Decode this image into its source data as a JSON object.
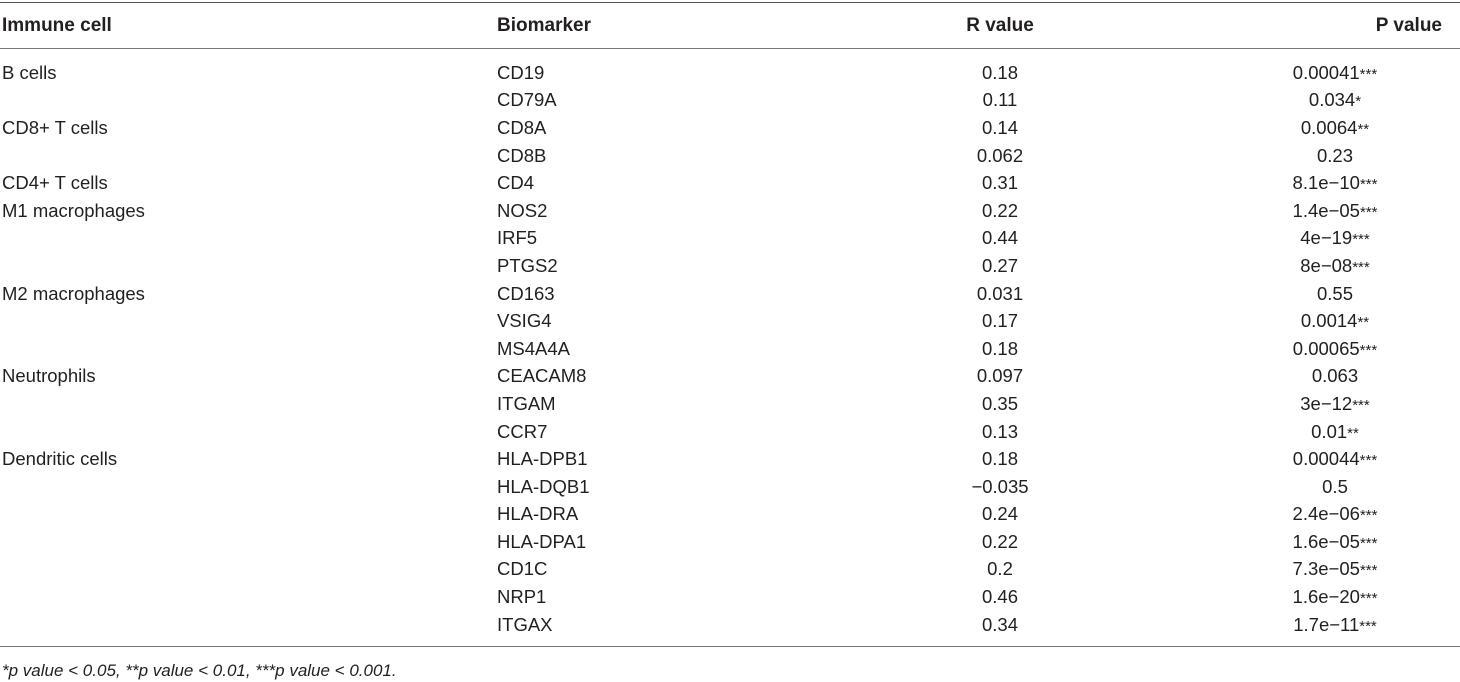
{
  "headers": {
    "immune_cell": "Immune cell",
    "biomarker": "Biomarker",
    "r_value": "R value",
    "p_value": "P value"
  },
  "rows": [
    {
      "cell": "B cells",
      "marker": "CD19",
      "r": "0.18",
      "p": "0.00041",
      "stars": "***"
    },
    {
      "cell": "",
      "marker": "CD79A",
      "r": "0.11",
      "p": "0.034",
      "stars": "*"
    },
    {
      "cell": "CD8+ T cells",
      "marker": "CD8A",
      "r": "0.14",
      "p": "0.0064",
      "stars": "**"
    },
    {
      "cell": "",
      "marker": "CD8B",
      "r": "0.062",
      "p": "0.23",
      "stars": ""
    },
    {
      "cell": "CD4+ T cells",
      "marker": "CD4",
      "r": "0.31",
      "p": "8.1e−10",
      "stars": "***"
    },
    {
      "cell": "M1 macrophages",
      "marker": "NOS2",
      "r": "0.22",
      "p": "1.4e−05",
      "stars": "***"
    },
    {
      "cell": "",
      "marker": "IRF5",
      "r": "0.44",
      "p": "4e−19",
      "stars": "***"
    },
    {
      "cell": "",
      "marker": "PTGS2",
      "r": "0.27",
      "p": "8e−08",
      "stars": "***"
    },
    {
      "cell": "M2 macrophages",
      "marker": "CD163",
      "r": "0.031",
      "p": "0.55",
      "stars": ""
    },
    {
      "cell": "",
      "marker": "VSIG4",
      "r": "0.17",
      "p": "0.0014",
      "stars": "**"
    },
    {
      "cell": "",
      "marker": "MS4A4A",
      "r": "0.18",
      "p": "0.00065",
      "stars": "***"
    },
    {
      "cell": "Neutrophils",
      "marker": "CEACAM8",
      "r": "0.097",
      "p": "0.063",
      "stars": ""
    },
    {
      "cell": "",
      "marker": "ITGAM",
      "r": "0.35",
      "p": "3e−12",
      "stars": "***"
    },
    {
      "cell": "",
      "marker": "CCR7",
      "r": "0.13",
      "p": "0.01",
      "stars": "**"
    },
    {
      "cell": "Dendritic cells",
      "marker": "HLA-DPB1",
      "r": "0.18",
      "p": "0.00044",
      "stars": "***"
    },
    {
      "cell": "",
      "marker": "HLA-DQB1",
      "r": "−0.035",
      "p": "0.5",
      "stars": ""
    },
    {
      "cell": "",
      "marker": "HLA-DRA",
      "r": "0.24",
      "p": "2.4e−06",
      "stars": "***"
    },
    {
      "cell": "",
      "marker": "HLA-DPA1",
      "r": "0.22",
      "p": "1.6e−05",
      "stars": "***"
    },
    {
      "cell": "",
      "marker": "CD1C",
      "r": "0.2",
      "p": "7.3e−05",
      "stars": "***"
    },
    {
      "cell": "",
      "marker": "NRP1",
      "r": "0.46",
      "p": "1.6e−20",
      "stars": "***"
    },
    {
      "cell": "",
      "marker": "ITGAX",
      "r": "0.34",
      "p": "1.7e−11",
      "stars": "***"
    }
  ],
  "footnote": "*p value < 0.05, **p value < 0.01, ***p value < 0.001."
}
